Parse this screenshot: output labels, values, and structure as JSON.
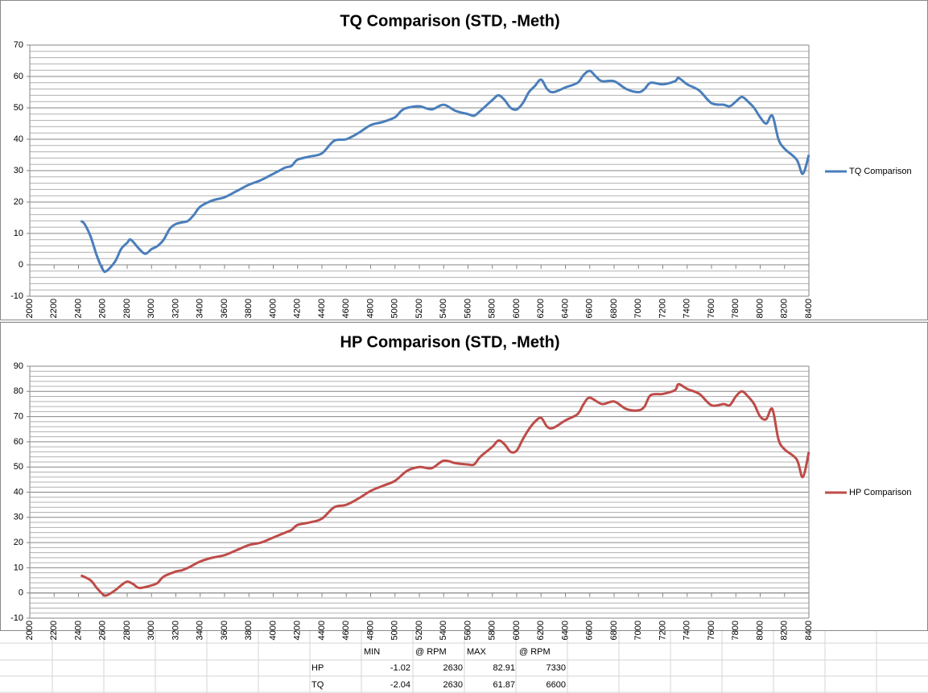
{
  "chart_data": [
    {
      "type": "line",
      "title": "TQ Comparison (STD, -Meth)",
      "x": [
        2420,
        2450,
        2500,
        2550,
        2600,
        2630,
        2700,
        2750,
        2800,
        2830,
        2900,
        2950,
        3000,
        3050,
        3100,
        3150,
        3200,
        3250,
        3300,
        3350,
        3400,
        3500,
        3600,
        3700,
        3800,
        3900,
        4000,
        4050,
        4100,
        4150,
        4200,
        4300,
        4400,
        4500,
        4600,
        4700,
        4800,
        4900,
        5000,
        5050,
        5100,
        5200,
        5300,
        5400,
        5500,
        5600,
        5650,
        5700,
        5800,
        5850,
        5900,
        5950,
        6000,
        6050,
        6100,
        6150,
        6200,
        6250,
        6300,
        6400,
        6500,
        6550,
        6600,
        6650,
        6700,
        6800,
        6900,
        7000,
        7050,
        7100,
        7200,
        7300,
        7330,
        7400,
        7500,
        7600,
        7700,
        7750,
        7800,
        7850,
        7900,
        7950,
        8000,
        8050,
        8100,
        8150,
        8200,
        8300,
        8350,
        8400
      ],
      "series": [
        {
          "name": "TQ Comparison",
          "color": "#4a7ebb",
          "values": [
            14,
            13,
            9,
            3,
            -1.5,
            -2,
            1,
            5,
            7,
            8,
            5,
            3.5,
            5,
            6,
            8,
            11.5,
            13,
            13.5,
            14,
            16,
            18.5,
            20.5,
            21.5,
            23.5,
            25.5,
            27,
            29,
            30,
            31,
            31.5,
            33.5,
            34.5,
            35.5,
            39.5,
            40,
            42,
            44.5,
            45.5,
            47,
            49,
            50,
            50.5,
            49.5,
            51,
            49,
            48,
            47.5,
            49,
            52.5,
            54,
            52.5,
            50,
            49.5,
            51.5,
            55,
            57,
            59,
            56,
            55,
            56.5,
            58,
            60.5,
            61.8,
            60,
            58.5,
            58.5,
            56,
            55,
            56,
            58,
            57.5,
            58.5,
            59.5,
            57.5,
            55.5,
            51.5,
            51,
            50.5,
            52,
            53.5,
            52,
            50,
            47,
            45,
            47.5,
            40,
            37,
            33.5,
            29,
            35
          ]
        }
      ],
      "xlim": [
        2000,
        8400
      ],
      "xticks": [
        2000,
        2200,
        2400,
        2600,
        2800,
        3000,
        3200,
        3400,
        3600,
        3800,
        4000,
        4200,
        4400,
        4600,
        4800,
        5000,
        5200,
        5400,
        5600,
        5800,
        6000,
        6200,
        6400,
        6600,
        6800,
        7000,
        7200,
        7400,
        7600,
        7800,
        8000,
        8200,
        8400
      ],
      "ylim": [
        -10,
        70
      ],
      "yticks": [
        -10,
        0,
        10,
        20,
        30,
        40,
        50,
        60,
        70
      ],
      "grid": true,
      "minor_grid": true,
      "legend": "right"
    },
    {
      "type": "line",
      "title": "HP Comparison (STD, -Meth)",
      "x": [
        2420,
        2500,
        2550,
        2600,
        2630,
        2700,
        2750,
        2800,
        2850,
        2900,
        3000,
        3050,
        3100,
        3200,
        3250,
        3300,
        3400,
        3500,
        3600,
        3700,
        3800,
        3900,
        4000,
        4100,
        4150,
        4200,
        4300,
        4400,
        4500,
        4600,
        4700,
        4800,
        4900,
        5000,
        5100,
        5200,
        5300,
        5400,
        5500,
        5600,
        5650,
        5700,
        5800,
        5850,
        5900,
        5950,
        6000,
        6050,
        6100,
        6150,
        6200,
        6250,
        6300,
        6400,
        6500,
        6550,
        6600,
        6700,
        6800,
        6900,
        7000,
        7050,
        7100,
        7200,
        7300,
        7330,
        7400,
        7500,
        7600,
        7700,
        7750,
        7800,
        7850,
        7900,
        7950,
        8000,
        8050,
        8100,
        8150,
        8200,
        8300,
        8350,
        8400
      ],
      "series": [
        {
          "name": "HP Comparison",
          "color": "#be4b48",
          "values": [
            7,
            5,
            2,
            -0.5,
            -1,
            1,
            3,
            4.5,
            3.5,
            2,
            3,
            4,
            6.5,
            8.5,
            9,
            10,
            12.5,
            14,
            15,
            17,
            19,
            20,
            22,
            24,
            25,
            27,
            28,
            29.5,
            34,
            35,
            37.5,
            40.5,
            42.5,
            44.5,
            48.5,
            50,
            49.5,
            52.5,
            51.5,
            51,
            51,
            54,
            58,
            60.5,
            59,
            56,
            56.5,
            61,
            65,
            68,
            69.5,
            66,
            65.5,
            68.5,
            71,
            75,
            77.5,
            75,
            76,
            73,
            72.5,
            74,
            78.5,
            79,
            80.5,
            82.9,
            81,
            79,
            74.5,
            75,
            74.5,
            78,
            80,
            78,
            75,
            70,
            69,
            73,
            61,
            57,
            53,
            46,
            56
          ]
        }
      ],
      "xlim": [
        2000,
        8400
      ],
      "xticks": [
        2000,
        2200,
        2400,
        2600,
        2800,
        3000,
        3200,
        3400,
        3600,
        3800,
        4000,
        4200,
        4400,
        4600,
        4800,
        5000,
        5200,
        5400,
        5600,
        5800,
        6000,
        6200,
        6400,
        6600,
        6800,
        7000,
        7200,
        7400,
        7600,
        7800,
        8000,
        8200,
        8400
      ],
      "ylim": [
        -10,
        90
      ],
      "yticks": [
        -10,
        0,
        10,
        20,
        30,
        40,
        50,
        60,
        70,
        80,
        90
      ],
      "grid": true,
      "minor_grid": true,
      "legend": "right"
    }
  ],
  "table": {
    "header": [
      "MIN",
      "@ RPM",
      "MAX",
      "@ RPM"
    ],
    "rows": [
      [
        "HP",
        -1.02,
        2630,
        82.91,
        7330
      ],
      [
        "TQ",
        -2.04,
        2630,
        61.87,
        6600
      ]
    ]
  }
}
